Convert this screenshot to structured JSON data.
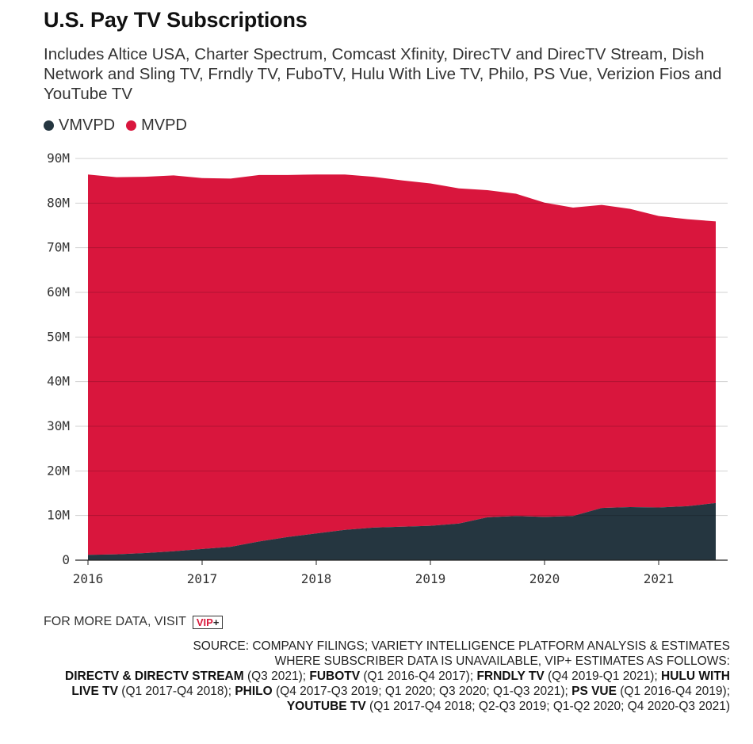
{
  "header": {
    "title": "U.S. Pay TV Subscriptions",
    "subtitle": "Includes Altice USA, Charter Spectrum, Comcast Xfinity, DirecTV and DirecTV Stream, Dish Network and Sling TV, Frndly TV, FuboTV, Hulu With Live TV, Philo, PS Vue, Verizion Fios and YouTube TV"
  },
  "legend": {
    "items": [
      {
        "label": "VMVPD",
        "color": "#253640"
      },
      {
        "label": "MVPD",
        "color": "#d9163d"
      }
    ]
  },
  "footer": {
    "more_data_label": "FOR MORE DATA, VISIT",
    "vip_text": "VIP",
    "vip_plus": "+",
    "source_line1": "SOURCE: COMPANY FILINGS; VARIETY INTELLIGENCE PLATFORM ANALYSIS & ESTIMATES",
    "source_line2": "WHERE SUBSCRIBER DATA IS UNAVAILABLE, VIP+ ESTIMATES AS FOLLOWS:",
    "notes": [
      {
        "name": "DIRECTV & DIRECTV STREAM",
        "detail": " (Q3 2021); "
      },
      {
        "name": "FUBOTV",
        "detail": " (Q1 2016-Q4 2017); "
      },
      {
        "name": "FRNDLY TV",
        "detail": " (Q4 2019-Q1 2021); "
      },
      {
        "name": "HULU WITH LIVE TV",
        "detail": " (Q1 2017-Q4 2018); "
      },
      {
        "name": "PHILO",
        "detail": " (Q4 2017-Q3 2019; Q1 2020; Q3 2020; Q1-Q3 2021); "
      },
      {
        "name": "PS VUE",
        "detail": " (Q1 2016-Q4 2019); "
      },
      {
        "name": "YOUTUBE TV",
        "detail": " (Q1 2017-Q4 2018; Q2-Q3 2019; Q1-Q2 2020; Q4 2020-Q3 2021)"
      }
    ]
  },
  "chart_data": {
    "type": "area",
    "stacked": true,
    "title": "U.S. Pay TV Subscriptions",
    "x": [
      "Q1 2016",
      "Q2 2016",
      "Q3 2016",
      "Q4 2016",
      "Q1 2017",
      "Q2 2017",
      "Q3 2017",
      "Q4 2017",
      "Q1 2018",
      "Q2 2018",
      "Q3 2018",
      "Q4 2018",
      "Q1 2019",
      "Q2 2019",
      "Q3 2019",
      "Q4 2019",
      "Q1 2020",
      "Q2 2020",
      "Q3 2020",
      "Q4 2020",
      "Q1 2021",
      "Q2 2021",
      "Q3 2021"
    ],
    "x_tick_labels": [
      "2016",
      "2017",
      "2018",
      "2019",
      "2020",
      "2021"
    ],
    "y_tick_labels": [
      "0",
      "10M",
      "20M",
      "30M",
      "40M",
      "50M",
      "60M",
      "70M",
      "80M",
      "90M"
    ],
    "ylim": [
      0,
      90
    ],
    "y_unit": "M",
    "grid": true,
    "legend_position": "top-left",
    "series": [
      {
        "name": "VMVPD",
        "color": "#253640",
        "values": [
          1.2,
          1.3,
          1.6,
          2.0,
          2.5,
          3.0,
          4.2,
          5.2,
          6.0,
          6.8,
          7.3,
          7.5,
          7.7,
          8.2,
          9.6,
          9.9,
          9.7,
          9.9,
          11.7,
          11.9,
          11.8,
          12.1,
          12.8
        ]
      },
      {
        "name": "MVPD",
        "color": "#d9163d",
        "values": [
          85.2,
          84.5,
          84.3,
          84.2,
          83.1,
          82.5,
          82.1,
          81.1,
          80.4,
          79.6,
          78.6,
          77.6,
          76.7,
          75.1,
          73.3,
          72.2,
          70.4,
          69.1,
          67.9,
          66.8,
          65.3,
          64.3,
          63.1
        ]
      }
    ]
  }
}
